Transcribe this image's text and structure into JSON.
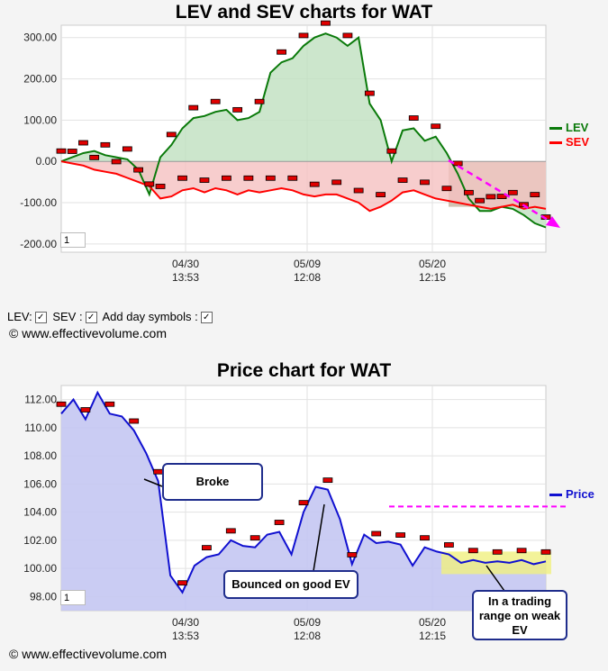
{
  "lev_sev_chart": {
    "title": "LEV and SEV charts for WAT",
    "legend": [
      {
        "label": "LEV",
        "color": "#0a7a0a"
      },
      {
        "label": "SEV",
        "color": "#ff0000"
      }
    ],
    "y_ticks": [
      "300.00",
      "200.00",
      "100.00",
      "0.00",
      "-100.00",
      "-200.00"
    ],
    "x_ticks": [
      {
        "date": "04/30",
        "time": "13:53"
      },
      {
        "date": "05/09",
        "time": "12:08"
      },
      {
        "date": "05/20",
        "time": "12:15"
      }
    ],
    "zoom_value": "1"
  },
  "controls": {
    "lev_label": "LEV:",
    "sev_label": "SEV :",
    "day_symbols_label": "Add day symbols :",
    "check_mark": "✓"
  },
  "copyright": "© www.effectivevolume.com",
  "price_chart": {
    "title": "Price chart for WAT",
    "legend": [
      {
        "label": "Price",
        "color": "#1010d0"
      }
    ],
    "y_ticks": [
      "112.00",
      "110.00",
      "108.00",
      "106.00",
      "104.00",
      "102.00",
      "100.00",
      "98.00"
    ],
    "x_ticks": [
      {
        "date": "04/30",
        "time": "13:53"
      },
      {
        "date": "05/09",
        "time": "12:08"
      },
      {
        "date": "05/20",
        "time": "12:15"
      }
    ],
    "zoom_value": "1",
    "callouts": {
      "broke": "Broke",
      "bounced": "Bounced on good EV",
      "trading_range": "In a trading range on weak EV"
    }
  },
  "chart_data": [
    {
      "type": "area",
      "title": "LEV and SEV charts for WAT",
      "ylim": [
        -220,
        330
      ],
      "x_tick_labels": [
        "04/30 13:53",
        "05/09 12:08",
        "05/20 12:15"
      ],
      "series": [
        {
          "name": "LEV",
          "color": "#0a7a0a",
          "values": [
            0,
            10,
            20,
            25,
            15,
            10,
            5,
            -20,
            -80,
            10,
            40,
            80,
            105,
            110,
            120,
            125,
            100,
            105,
            120,
            215,
            240,
            250,
            280,
            300,
            310,
            300,
            280,
            300,
            140,
            100,
            0,
            75,
            80,
            50,
            60,
            20,
            -30,
            -90,
            -120,
            -120,
            -110,
            -115,
            -130,
            -150,
            -160
          ]
        },
        {
          "name": "SEV",
          "color": "#ff0000",
          "values": [
            0,
            -5,
            -10,
            -20,
            -25,
            -30,
            -40,
            -50,
            -60,
            -90,
            -85,
            -70,
            -65,
            -75,
            -65,
            -70,
            -80,
            -70,
            -75,
            -70,
            -65,
            -70,
            -80,
            -85,
            -80,
            -80,
            -90,
            -100,
            -120,
            -110,
            -95,
            -75,
            -70,
            -80,
            -90,
            -95,
            -100,
            -105,
            -110,
            -115,
            -110,
            -105,
            -115,
            -110,
            -115
          ]
        }
      ]
    },
    {
      "type": "area",
      "title": "Price chart for WAT",
      "ylim": [
        97,
        113
      ],
      "x_tick_labels": [
        "04/30 13:53",
        "05/09 12:08",
        "05/20 12:15"
      ],
      "series": [
        {
          "name": "Price",
          "color": "#1010d0",
          "values": [
            111,
            112,
            110.6,
            112.5,
            111,
            110.8,
            109.8,
            108.2,
            106.2,
            99.5,
            98.3,
            100.2,
            100.8,
            101,
            102,
            101.6,
            101.5,
            102.4,
            102.6,
            101,
            104,
            105.8,
            105.6,
            103.5,
            100.3,
            102.4,
            101.8,
            101.9,
            101.7,
            100.2,
            101.5,
            101.2,
            101,
            100.4,
            100.6,
            100.4,
            100.5,
            100.4,
            100.6,
            100.3,
            100.5
          ]
        }
      ]
    }
  ]
}
